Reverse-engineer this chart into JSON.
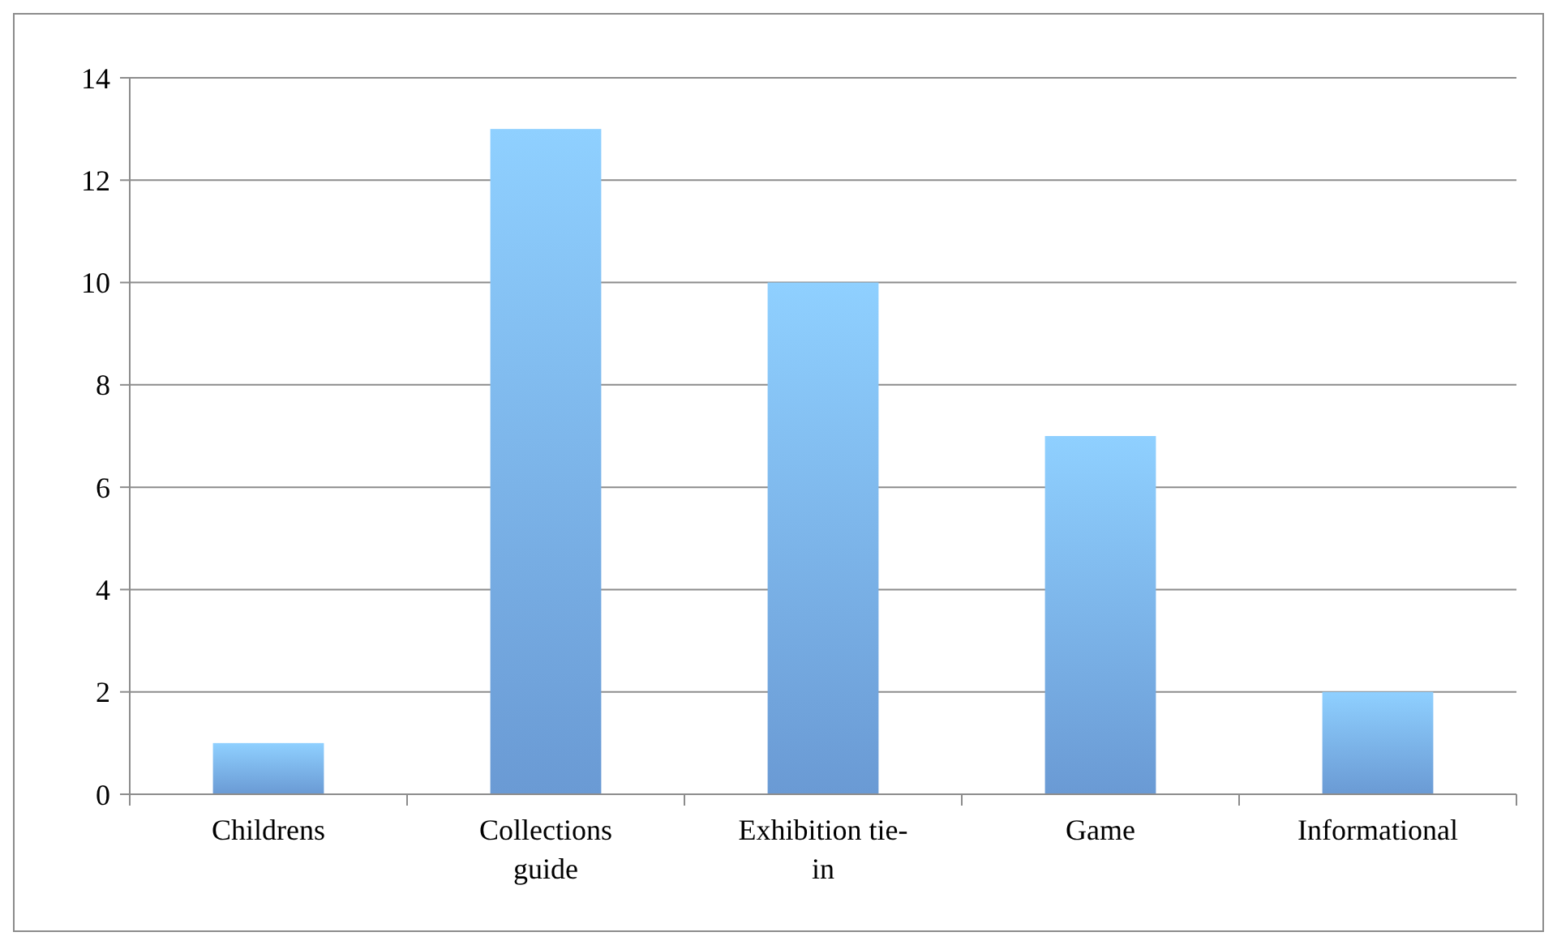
{
  "chart_data": {
    "type": "bar",
    "categories": [
      "Childrens",
      "Collections guide",
      "Exhibition tie-in",
      "Game",
      "Informational"
    ],
    "values": [
      1,
      13,
      10,
      7,
      2
    ],
    "color": "#78aef0",
    "ylim": [
      0,
      14
    ],
    "yticks": [
      0,
      2,
      4,
      6,
      8,
      10,
      12,
      14
    ],
    "grid": "y"
  }
}
